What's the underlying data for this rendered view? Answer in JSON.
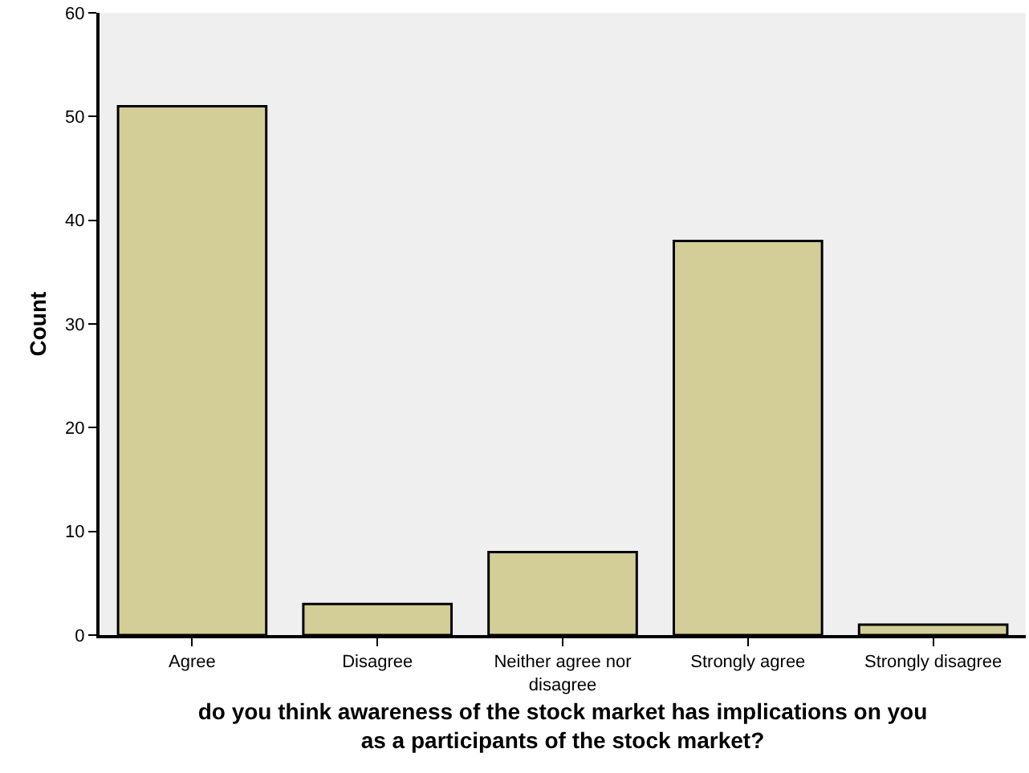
{
  "chart_data": {
    "type": "bar",
    "categories": [
      "Agree",
      "Disagree",
      "Neither agree nor disagree",
      "Strongly agree",
      "Strongly disagree"
    ],
    "values": [
      51,
      3,
      8,
      38,
      1
    ],
    "color": "#d3ce97",
    "xlabel": "do you think awareness of the stock market has implications on you as a participants of the stock market?",
    "ylabel": "Count",
    "ylim": [
      0,
      60
    ],
    "yticks": [
      0,
      10,
      20,
      30,
      40,
      50,
      60
    ],
    "grid": false,
    "legend": false
  }
}
